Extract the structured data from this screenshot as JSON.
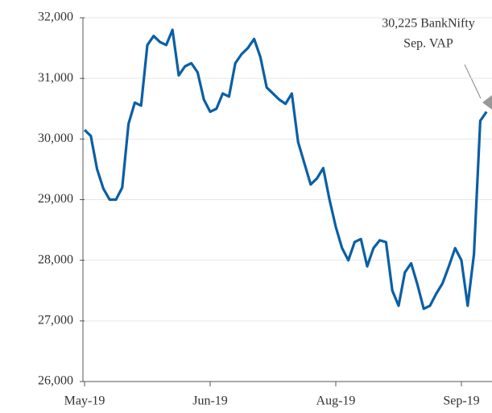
{
  "chart_data": {
    "type": "line",
    "categories": [
      "May-19",
      null,
      null,
      null,
      null,
      null,
      null,
      null,
      null,
      null,
      null,
      null,
      null,
      null,
      null,
      null,
      null,
      null,
      null,
      null,
      "Jun-19",
      null,
      null,
      null,
      null,
      null,
      null,
      null,
      null,
      null,
      null,
      null,
      null,
      null,
      null,
      null,
      null,
      null,
      null,
      null,
      "Aug-19",
      null,
      null,
      null,
      null,
      null,
      null,
      null,
      null,
      null,
      null,
      null,
      null,
      null,
      null,
      null,
      null,
      null,
      null,
      null,
      "Sep-19",
      null,
      null,
      null,
      null
    ],
    "series": [
      {
        "color": "#0b5fa5",
        "values": [
          30150,
          30050,
          29500,
          29180,
          29000,
          29000,
          29200,
          30250,
          30600,
          30550,
          31550,
          31700,
          31600,
          31550,
          31800,
          31050,
          31200,
          31250,
          31100,
          30650,
          30450,
          30500,
          30750,
          30700,
          31250,
          31400,
          31500,
          31650,
          31350,
          30850,
          30750,
          30650,
          30580,
          30750,
          29950,
          29600,
          29250,
          29350,
          29520,
          29000,
          28550,
          28200,
          28000,
          28300,
          28350,
          27900,
          28200,
          28330,
          28300,
          27500,
          27250,
          27800,
          27950,
          27600,
          27200,
          27250,
          27450,
          27620,
          27900,
          28200,
          28000,
          27250,
          28100,
          30300,
          30450
        ]
      }
    ],
    "ylim": [
      26000,
      32000
    ],
    "yticks": [
      {
        "value": 26000,
        "label": "26,000"
      },
      {
        "value": 27000,
        "label": "27,000"
      },
      {
        "value": 28000,
        "label": "28,000"
      },
      {
        "value": 29000,
        "label": "29,000"
      },
      {
        "value": 30000,
        "label": "30,000"
      },
      {
        "value": 31000,
        "label": "31,000"
      },
      {
        "value": 32000,
        "label": "32,000"
      }
    ],
    "grid": true,
    "annotation": [
      "30,225 BankNifty",
      "Sep. VAP"
    ]
  }
}
